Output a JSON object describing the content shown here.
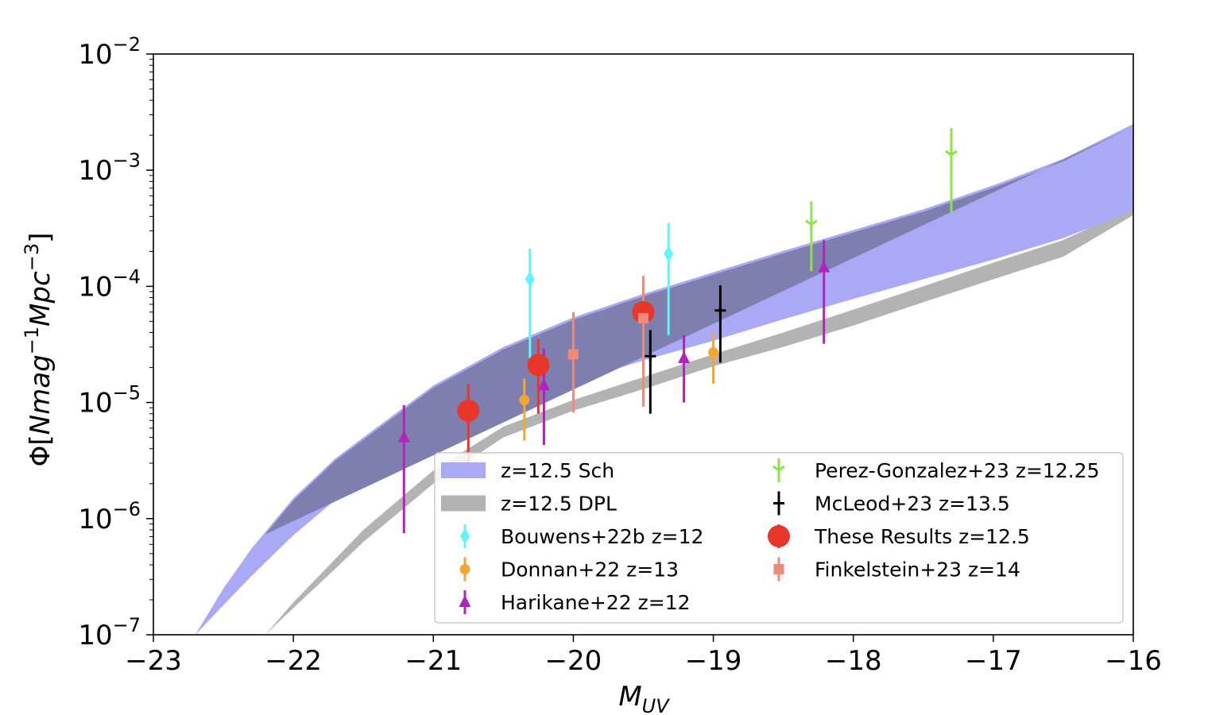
{
  "chart_data": {
    "type": "scatter",
    "xlabel": "M",
    "xlabel_sub": "UV",
    "ylabel": "Φ[Nmag",
    "ylabel_parts": [
      "Φ[",
      "Nmag",
      "−1",
      "Mpc",
      "−3",
      "]"
    ],
    "x_scale": "linear",
    "y_scale": "log",
    "xlim": [
      -23,
      -16
    ],
    "ylim": [
      1e-07,
      0.01
    ],
    "xticks": [
      -23,
      -22,
      -21,
      -20,
      -19,
      -18,
      -17,
      -16
    ],
    "xtick_labels": [
      "−23",
      "−22",
      "−21",
      "−20",
      "−19",
      "−18",
      "−17",
      "−16"
    ],
    "yticks": [
      1e-07,
      1e-06,
      1e-05,
      0.0001,
      0.001,
      0.01
    ],
    "ytick_labels": [
      {
        "base": "10",
        "exp": "−7"
      },
      {
        "base": "10",
        "exp": "−6"
      },
      {
        "base": "10",
        "exp": "−5"
      },
      {
        "base": "10",
        "exp": "−4"
      },
      {
        "base": "10",
        "exp": "−3"
      },
      {
        "base": "10",
        "exp": "−2"
      }
    ],
    "grid": false,
    "legend_position": "lower-right",
    "bands": [
      {
        "name": "z=12.5 Sch",
        "color": "#a9a9f5",
        "x": [
          -22.7,
          -22.5,
          -22.3,
          -22,
          -21.7,
          -21.5,
          -21,
          -20.5,
          -20,
          -19.5,
          -19,
          -18.5,
          -18,
          -17.5,
          -17,
          -16.5,
          -16
        ],
        "lower": [
          1e-07,
          1.8e-07,
          3.2e-07,
          7.2e-07,
          1.45e-06,
          2.2e-06,
          5e-06,
          9.2e-06,
          1.5e-05,
          2.3e-05,
          3.4e-05,
          5.2e-05,
          7.8e-05,
          0.000115,
          0.00017,
          0.00026,
          0.00045
        ],
        "upper": [
          1e-07,
          2.5e-07,
          5.5e-07,
          1.5e-06,
          3.3e-06,
          5e-06,
          1.4e-05,
          3e-05,
          5.4e-05,
          8.6e-05,
          0.000132,
          0.000202,
          0.000305,
          0.00046,
          0.00074,
          0.00125,
          0.0025
        ]
      },
      {
        "name": "z=12.5 DPL",
        "color": "#b3b3b3",
        "x": [
          -22.2,
          -22,
          -21.7,
          -21.5,
          -21,
          -20.5,
          -20,
          -19.5,
          -19,
          -18.5,
          -18,
          -17.5,
          -17,
          -16.5,
          -16
        ],
        "lower": [
          1e-07,
          1.7e-07,
          3.7e-07,
          6.3e-07,
          2e-06,
          5e-06,
          8.5e-06,
          1.3e-05,
          2.05e-05,
          3e-05,
          4.6e-05,
          7.3e-05,
          0.000115,
          0.00018,
          0.00041
        ],
        "upper": [
          1e-07,
          1.9e-07,
          4.5e-07,
          8e-07,
          2.6e-06,
          6.2e-06,
          1.05e-05,
          1.65e-05,
          2.6e-05,
          4e-05,
          6.3e-05,
          0.0001,
          0.00016,
          0.00025,
          0.00048
        ]
      }
    ],
    "band_overlap_color": "#7f7faf",
    "series": [
      {
        "name": "Bouwens+22b z=12",
        "color": "#5ff5fa",
        "marker": "diamond",
        "points": [
          {
            "x": -20.31,
            "y": 0.000115,
            "ylo": 2.4e-05,
            "yhi": 0.00021
          },
          {
            "x": -19.32,
            "y": 0.00019,
            "ylo": 3.8e-05,
            "yhi": 0.00035
          }
        ]
      },
      {
        "name": "Donnan+22 z=13",
        "color": "#f5a632",
        "marker": "circle",
        "points": [
          {
            "x": -20.35,
            "y": 1.05e-05,
            "ylo": 4.7e-06,
            "yhi": 1.6e-05
          },
          {
            "x": -19.0,
            "y": 2.7e-05,
            "ylo": 1.45e-05,
            "yhi": 4e-05
          }
        ]
      },
      {
        "name": "Harikane+22 z=12",
        "color": "#b123be",
        "marker": "triangle",
        "points": [
          {
            "x": -21.21,
            "y": 5e-06,
            "ylo": 7.5e-07,
            "yhi": 9.5e-06
          },
          {
            "x": -20.21,
            "y": 1.4e-05,
            "ylo": 4.3e-06,
            "yhi": 2.9e-05
          },
          {
            "x": -19.21,
            "y": 2.4e-05,
            "ylo": 1e-05,
            "yhi": 3.8e-05
          },
          {
            "x": -18.21,
            "y": 0.000145,
            "ylo": 3.2e-05,
            "yhi": 0.00025
          }
        ]
      },
      {
        "name": "Perez-Gonzalez+23 z=12.25",
        "color": "#8ae640",
        "marker": "tri_down",
        "points": [
          {
            "x": -18.3,
            "y": 0.00034,
            "ylo": 0.000135,
            "yhi": 0.00054
          },
          {
            "x": -17.3,
            "y": 0.00135,
            "ylo": 0.00043,
            "yhi": 0.0023
          }
        ]
      },
      {
        "name": "McLeod+23 z=13.5",
        "color": "#000000",
        "marker": "plus",
        "points": [
          {
            "x": -19.45,
            "y": 2.5e-05,
            "ylo": 8e-06,
            "yhi": 4.2e-05
          },
          {
            "x": -18.95,
            "y": 6.2e-05,
            "ylo": 2.2e-05,
            "yhi": 0.000102
          }
        ]
      },
      {
        "name": "These Results z=12.5",
        "color": "#e8362a",
        "marker": "big_circle",
        "points": [
          {
            "x": -20.75,
            "y": 8.5e-06,
            "ylo": 3e-06,
            "yhi": 1.45e-05
          },
          {
            "x": -20.25,
            "y": 2.1e-05,
            "ylo": 8e-06,
            "yhi": 3.5e-05
          },
          {
            "x": -19.5,
            "y": 6e-05,
            "ylo": 3.5e-05,
            "yhi": 8.5e-05
          }
        ]
      },
      {
        "name": "Finkelstein+23 z=14",
        "color": "#ee8a78",
        "marker": "square",
        "points": [
          {
            "x": -20.0,
            "y": 2.6e-05,
            "ylo": 8.2e-06,
            "yhi": 6e-05
          },
          {
            "x": -19.5,
            "y": 5.3e-05,
            "ylo": 9.2e-06,
            "yhi": 0.000123
          }
        ]
      }
    ],
    "legend": [
      {
        "label": "z=12.5 Sch",
        "kind": "band",
        "ref": 0
      },
      {
        "label": "z=12.5 DPL",
        "kind": "band",
        "ref": 1
      },
      {
        "label": "Bouwens+22b z=12",
        "kind": "series",
        "ref": 0
      },
      {
        "label": "Donnan+22 z=13",
        "kind": "series",
        "ref": 1
      },
      {
        "label": "Harikane+22 z=12",
        "kind": "series",
        "ref": 2
      },
      {
        "label": "Perez-Gonzalez+23 z=12.25",
        "kind": "series",
        "ref": 3
      },
      {
        "label": "McLeod+23 z=13.5",
        "kind": "series",
        "ref": 4
      },
      {
        "label": "These Results z=12.5",
        "kind": "series",
        "ref": 5
      },
      {
        "label": "Finkelstein+23 z=14",
        "kind": "series",
        "ref": 6
      }
    ]
  }
}
